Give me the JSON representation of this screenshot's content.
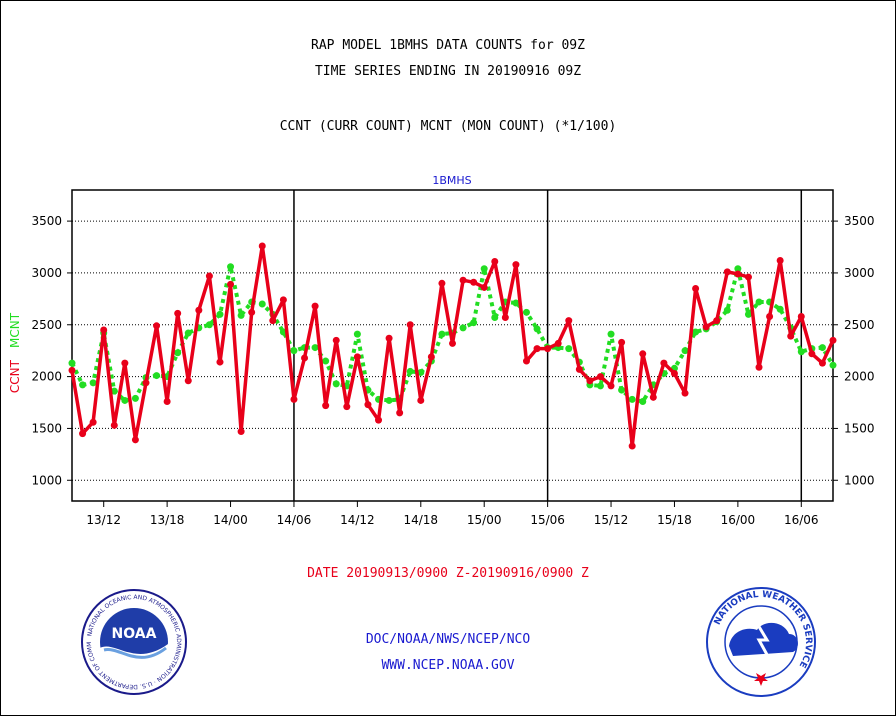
{
  "header": {
    "title_line1": "RAP MODEL 1BMHS DATA COUNTS for 09Z",
    "title_line2": "TIME SERIES ENDING IN 20190916 09Z",
    "subtitle": "CCNT (CURR COUNT) MCNT (MON COUNT) (*1/100)"
  },
  "footer": {
    "date_range": "DATE 20190913/0900 Z-20190916/0900 Z",
    "credit_org": "DOC/NOAA/NWS/NCEP/NCO",
    "credit_url": "WWW.NCEP.NOAA.GOV"
  },
  "logos": {
    "left": {
      "name": "NOAA",
      "ring_text": "NATIONAL OCEANIC AND ATMOSPHERIC ADMINISTRATION · U.S. DEPARTMENT OF COMMERCE"
    },
    "right": {
      "ring_text": "NATIONAL WEATHER SERVICE"
    }
  },
  "chart_data": {
    "type": "line",
    "title": "1BMHS",
    "ylabel_ccnt": "CCNT",
    "ylabel_mcnt": "MCNT",
    "xlim": [
      0,
      72
    ],
    "ylim": [
      800,
      3800
    ],
    "yticks": [
      1000,
      1500,
      2000,
      2500,
      3000,
      3500
    ],
    "xticks": [
      {
        "x": 3,
        "label": "13/12"
      },
      {
        "x": 9,
        "label": "13/18"
      },
      {
        "x": 15,
        "label": "14/00"
      },
      {
        "x": 21,
        "label": "14/06"
      },
      {
        "x": 27,
        "label": "14/12"
      },
      {
        "x": 33,
        "label": "14/18"
      },
      {
        "x": 39,
        "label": "15/00"
      },
      {
        "x": 45,
        "label": "15/06"
      },
      {
        "x": 51,
        "label": "15/12"
      },
      {
        "x": 57,
        "label": "15/18"
      },
      {
        "x": 63,
        "label": "16/00"
      },
      {
        "x": 69,
        "label": "16/06"
      }
    ],
    "day_boundaries": [
      21,
      45,
      69
    ],
    "grid": true,
    "colors": {
      "ccnt": "#e8001a",
      "mcnt": "#22dd22",
      "axes": "#000000",
      "title": "#1a1ad0"
    },
    "series": [
      {
        "name": "CCNT",
        "x": [
          0,
          1,
          2,
          3,
          4,
          5,
          6,
          7,
          8,
          9,
          10,
          11,
          12,
          13,
          14,
          15,
          16,
          17,
          18,
          19,
          20,
          21,
          22,
          23,
          24,
          25,
          26,
          27,
          28,
          29,
          30,
          31,
          32,
          33,
          34,
          35,
          36,
          37,
          38,
          39,
          40,
          41,
          42,
          43,
          44,
          45,
          46,
          47,
          48,
          49,
          50,
          51,
          52,
          53,
          54,
          55,
          56,
          57,
          58,
          59,
          60,
          61,
          62,
          63,
          64,
          65,
          66,
          67,
          68,
          69,
          70,
          71,
          72
        ],
        "values": [
          2060,
          1450,
          1560,
          2450,
          1530,
          2130,
          1390,
          1940,
          2490,
          1760,
          2610,
          1960,
          2640,
          2970,
          2140,
          2890,
          1470,
          2620,
          3260,
          2540,
          2740,
          1780,
          2180,
          2680,
          1720,
          2350,
          1710,
          2190,
          1730,
          1580,
          2370,
          1650,
          2500,
          1770,
          2190,
          2900,
          2320,
          2930,
          2910,
          2860,
          3110,
          2570,
          3080,
          2150,
          2270,
          2270,
          2320,
          2540,
          2070,
          1960,
          2000,
          1910,
          2330,
          1330,
          2220,
          1800,
          2130,
          2030,
          1840,
          2850,
          2480,
          2540,
          3010,
          2990,
          2960,
          2090,
          2580,
          3120,
          2390,
          2580,
          2220,
          2130,
          2350
        ]
      },
      {
        "name": "MCNT",
        "x": [
          0,
          1,
          2,
          3,
          4,
          5,
          6,
          7,
          8,
          9,
          10,
          11,
          12,
          13,
          14,
          15,
          16,
          17,
          18,
          19,
          20,
          21,
          22,
          23,
          24,
          25,
          26,
          27,
          28,
          29,
          30,
          31,
          32,
          33,
          34,
          35,
          36,
          37,
          38,
          39,
          40,
          41,
          42,
          43,
          44,
          45,
          46,
          47,
          48,
          49,
          50,
          51,
          52,
          53,
          54,
          55,
          56,
          57,
          58,
          59,
          60,
          61,
          62,
          63,
          64,
          65,
          66,
          67,
          68,
          69,
          70,
          71,
          72
        ],
        "values": [
          2130,
          1920,
          1940,
          2420,
          1860,
          1770,
          1790,
          1990,
          2010,
          2000,
          2230,
          2420,
          2470,
          2500,
          2600,
          3060,
          2590,
          2720,
          2700,
          2600,
          2430,
          2250,
          2280,
          2280,
          2150,
          1930,
          1910,
          2410,
          1870,
          1780,
          1770,
          1780,
          2050,
          2040,
          2150,
          2410,
          2420,
          2470,
          2520,
          3040,
          2570,
          2720,
          2710,
          2620,
          2460,
          2280,
          2280,
          2270,
          2140,
          1920,
          1910,
          2410,
          1870,
          1780,
          1760,
          1920,
          2030,
          2080,
          2250,
          2430,
          2460,
          2530,
          2640,
          3040,
          2600,
          2720,
          2720,
          2650,
          2470,
          2240,
          2270,
          2280,
          2110
        ]
      }
    ]
  }
}
